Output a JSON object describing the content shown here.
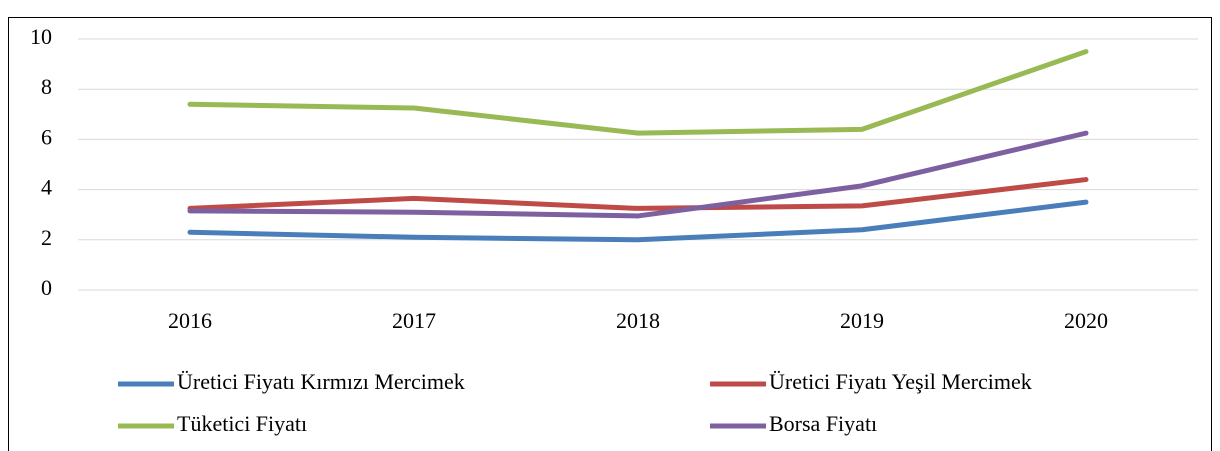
{
  "chart_data": {
    "type": "line",
    "categories": [
      "2016",
      "2017",
      "2018",
      "2019",
      "2020"
    ],
    "series": [
      {
        "name": "Üretici Fiyatı Kırmızı Mercimek",
        "color": "#4a7ebb",
        "values": [
          2.3,
          2.1,
          2.0,
          2.4,
          3.5
        ]
      },
      {
        "name": "Üretici Fiyatı Yeşil Mercimek",
        "color": "#be4b48",
        "values": [
          3.25,
          3.65,
          3.25,
          3.35,
          4.4
        ]
      },
      {
        "name": "Tüketici Fiyatı",
        "color": "#98b954",
        "values": [
          7.4,
          7.25,
          6.25,
          6.4,
          9.5
        ]
      },
      {
        "name": "Borsa Fiyatı",
        "color": "#7d60a0",
        "values": [
          3.15,
          3.1,
          2.95,
          4.15,
          6.25
        ]
      }
    ],
    "ylim": [
      0,
      10
    ],
    "yticks": [
      0,
      2,
      4,
      6,
      8,
      10
    ],
    "grid": true,
    "legend": "bottom"
  }
}
